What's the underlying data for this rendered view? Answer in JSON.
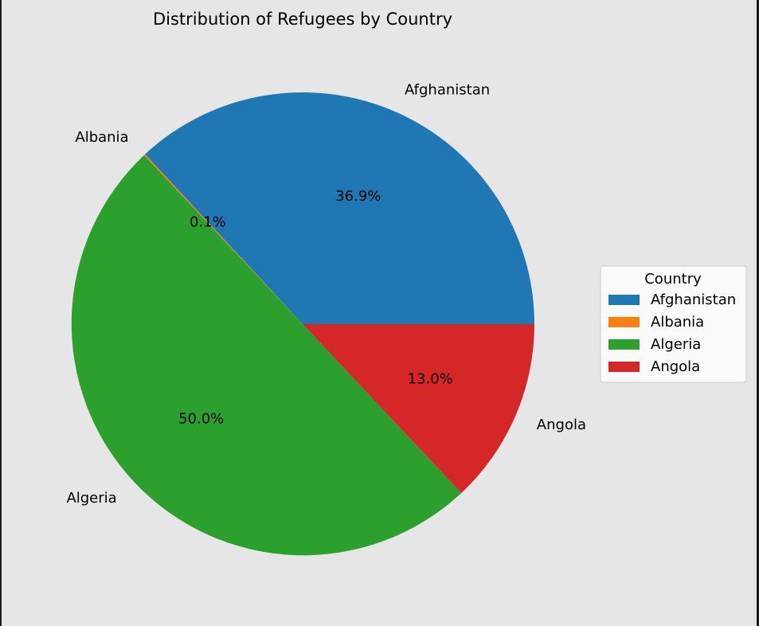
{
  "chart_data": {
    "type": "pie",
    "title": "Distribution of Refugees by Country",
    "categories": [
      "Afghanistan",
      "Albania",
      "Algeria",
      "Angola"
    ],
    "values": [
      36.9,
      0.1,
      50.0,
      13.0
    ],
    "value_labels": [
      "36.9%",
      "0.1%",
      "50.0%",
      "13.0%"
    ],
    "colors": [
      "#1f77b4",
      "#ff7f0e",
      "#2ca02c",
      "#d62728"
    ],
    "start_angle_deg": 0,
    "direction": "counterclockwise",
    "legend": {
      "title": "Country",
      "placement": "right"
    }
  }
}
